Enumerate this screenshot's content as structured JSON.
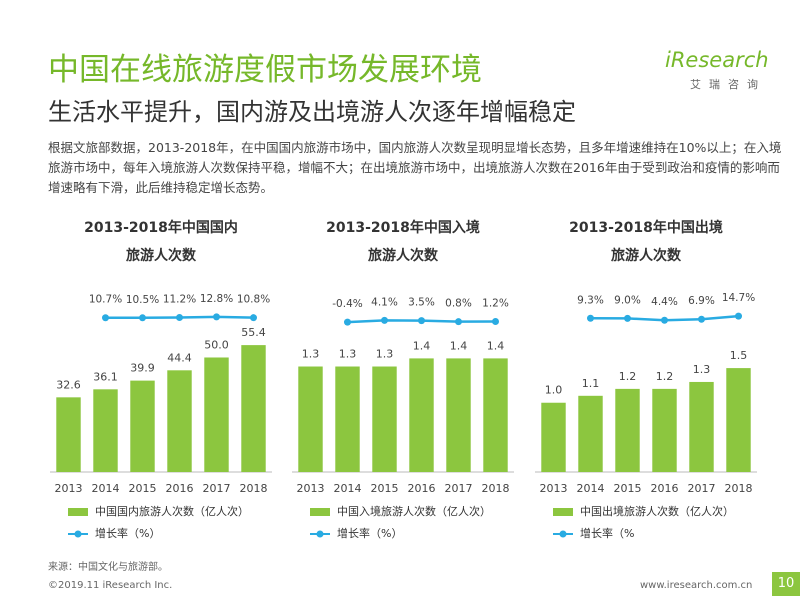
{
  "header": {
    "title": "中国在线旅游度假市场发展环境",
    "subtitle": "生活水平提升，国内游及出境游人次逐年增幅稳定",
    "logo": "iResearch",
    "logo_sub": "艾瑞咨询"
  },
  "description": "根据文旅部数据，2013-2018年，在中国国内旅游市场中，国内旅游人次数呈现明显增长态势，且多年增速维持在10%以上；在入境旅游市场中，每年入境旅游人次数保持平稳，增幅不大；在出境旅游市场中，出境旅游人次数在2016年由于受到政治和疫情的影响而增速略有下滑，此后维持稳定增长态势。",
  "chart_data": [
    {
      "type": "bar",
      "title": [
        "2013-2018年中国国内",
        "旅游人次数"
      ],
      "categories": [
        "2013",
        "2014",
        "2015",
        "2016",
        "2017",
        "2018"
      ],
      "ylim": [
        0,
        62
      ],
      "series": [
        {
          "name": "中国国内旅游人次数（亿人次）",
          "color": "#8cc63f",
          "values": [
            32.6,
            36.1,
            39.9,
            44.4,
            50.0,
            55.4
          ],
          "value_labels": [
            "32.6",
            "36.1",
            "39.9",
            "44.4",
            "50.0",
            "55.4"
          ]
        },
        {
          "name": "增长率（%）",
          "type": "line",
          "color": "#29abe2",
          "values": [
            null,
            10.7,
            10.5,
            11.2,
            12.8,
            10.8
          ],
          "value_labels": [
            null,
            "10.7%",
            "10.5%",
            "11.2%",
            "12.8%",
            "10.8%"
          ]
        }
      ]
    },
    {
      "type": "bar",
      "title": [
        "2013-2018年中国入境",
        "旅游人次数"
      ],
      "categories": [
        "2013",
        "2014",
        "2015",
        "2016",
        "2017",
        "2018"
      ],
      "ylim": [
        0,
        1.75
      ],
      "series": [
        {
          "name": "中国入境旅游人次数（亿人次）",
          "color": "#8cc63f",
          "values": [
            1.3,
            1.3,
            1.3,
            1.4,
            1.4,
            1.4
          ],
          "value_labels": [
            "1.3",
            "1.3",
            "1.3",
            "1.4",
            "1.4",
            "1.4"
          ]
        },
        {
          "name": "增长率（%）",
          "type": "line",
          "color": "#29abe2",
          "values": [
            null,
            -0.4,
            4.1,
            3.5,
            0.8,
            1.2
          ],
          "value_labels": [
            null,
            "-0.4%",
            "4.1%",
            "3.5%",
            "0.8%",
            "1.2%"
          ]
        }
      ]
    },
    {
      "type": "bar",
      "title": [
        "2013-2018年中国出境",
        "旅游人次数"
      ],
      "categories": [
        "2013",
        "2014",
        "2015",
        "2016",
        "2017",
        "2018"
      ],
      "ylim": [
        0,
        2.05
      ],
      "series": [
        {
          "name": "中国出境旅游人次数（亿人次）",
          "color": "#8cc63f",
          "values": [
            1.0,
            1.1,
            1.2,
            1.2,
            1.3,
            1.5
          ],
          "value_labels": [
            "1.0",
            "1.1",
            "1.2",
            "1.2",
            "1.3",
            "1.5"
          ]
        },
        {
          "name": "增长率（%",
          "type": "line",
          "color": "#29abe2",
          "values": [
            null,
            9.3,
            9.0,
            4.4,
            6.9,
            14.7
          ],
          "value_labels": [
            null,
            "9.3%",
            "9.0%",
            "4.4%",
            "6.9%",
            "14.7%"
          ]
        }
      ]
    }
  ],
  "source": "来源：中国文化与旅游部。",
  "footer": "©2019.11 iResearch Inc.",
  "url": "www.iresearch.com.cn",
  "page": "10"
}
